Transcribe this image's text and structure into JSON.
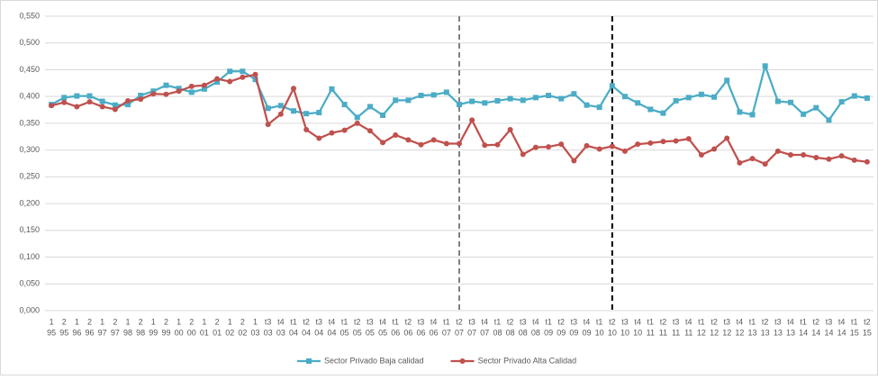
{
  "chart_data": {
    "type": "line",
    "categories": [
      [
        "1",
        "95"
      ],
      [
        "2",
        "95"
      ],
      [
        "1",
        "96"
      ],
      [
        "2",
        "96"
      ],
      [
        "1",
        "97"
      ],
      [
        "2",
        "97"
      ],
      [
        "1",
        "98"
      ],
      [
        "2",
        "98"
      ],
      [
        "1",
        "99"
      ],
      [
        "2",
        "99"
      ],
      [
        "1",
        "00"
      ],
      [
        "2",
        "00"
      ],
      [
        "1",
        "01"
      ],
      [
        "2",
        "01"
      ],
      [
        "1",
        "02"
      ],
      [
        "2",
        "02"
      ],
      [
        "1",
        "03"
      ],
      [
        "t3",
        "03"
      ],
      [
        "t4",
        "03"
      ],
      [
        "t1",
        "04"
      ],
      [
        "t2",
        "04"
      ],
      [
        "t3",
        "04"
      ],
      [
        "t4",
        "04"
      ],
      [
        "t1",
        "05"
      ],
      [
        "t2",
        "05"
      ],
      [
        "t3",
        "05"
      ],
      [
        "t4",
        "05"
      ],
      [
        "t1",
        "06"
      ],
      [
        "t2",
        "06"
      ],
      [
        "t3",
        "06"
      ],
      [
        "t4",
        "06"
      ],
      [
        "t1",
        "07"
      ],
      [
        "t2",
        "07"
      ],
      [
        "t3",
        "07"
      ],
      [
        "t4",
        "07"
      ],
      [
        "t1",
        "08"
      ],
      [
        "t2",
        "08"
      ],
      [
        "t3",
        "08"
      ],
      [
        "t4",
        "08"
      ],
      [
        "t1",
        "09"
      ],
      [
        "t2",
        "09"
      ],
      [
        "t3",
        "09"
      ],
      [
        "t4",
        "09"
      ],
      [
        "t1",
        "10"
      ],
      [
        "t2",
        "10"
      ],
      [
        "t3",
        "10"
      ],
      [
        "t4",
        "10"
      ],
      [
        "t1",
        "11"
      ],
      [
        "t2",
        "11"
      ],
      [
        "t3",
        "11"
      ],
      [
        "t4",
        "11"
      ],
      [
        "t1",
        "12"
      ],
      [
        "t2",
        "12"
      ],
      [
        "t3",
        "12"
      ],
      [
        "t4",
        "12"
      ],
      [
        "t1",
        "13"
      ],
      [
        "t2",
        "13"
      ],
      [
        "t3",
        "13"
      ],
      [
        "t4",
        "13"
      ],
      [
        "t1",
        "14"
      ],
      [
        "t2",
        "14"
      ],
      [
        "t3",
        "14"
      ],
      [
        "t4",
        "14"
      ],
      [
        "t1",
        "15"
      ],
      [
        "t2",
        "15"
      ]
    ],
    "series": [
      {
        "name": "Sector Privado Baja calidad",
        "color": "#4bacc6",
        "marker": "square",
        "values": [
          0.385,
          0.398,
          0.401,
          0.401,
          0.391,
          0.384,
          0.385,
          0.402,
          0.41,
          0.421,
          0.415,
          0.408,
          0.414,
          0.427,
          0.447,
          0.447,
          0.432,
          0.378,
          0.383,
          0.373,
          0.368,
          0.37,
          0.414,
          0.385,
          0.361,
          0.381,
          0.365,
          0.393,
          0.393,
          0.402,
          0.403,
          0.408,
          0.385,
          0.391,
          0.388,
          0.392,
          0.396,
          0.393,
          0.398,
          0.402,
          0.396,
          0.405,
          0.384,
          0.38,
          0.42,
          0.4,
          0.388,
          0.376,
          0.369,
          0.392,
          0.398,
          0.404,
          0.399,
          0.43,
          0.371,
          0.366,
          0.457,
          0.391,
          0.389,
          0.367,
          0.379,
          0.356,
          0.39,
          0.401,
          0.397
        ]
      },
      {
        "name": "Sector Privado Alta Calidad",
        "color": "#c0504d",
        "marker": "circle",
        "values": [
          0.383,
          0.389,
          0.381,
          0.39,
          0.381,
          0.376,
          0.392,
          0.395,
          0.405,
          0.404,
          0.41,
          0.419,
          0.421,
          0.433,
          0.428,
          0.436,
          0.441,
          0.348,
          0.367,
          0.415,
          0.338,
          0.322,
          0.332,
          0.337,
          0.35,
          0.336,
          0.314,
          0.328,
          0.319,
          0.31,
          0.319,
          0.312,
          0.312,
          0.356,
          0.309,
          0.31,
          0.338,
          0.292,
          0.305,
          0.306,
          0.311,
          0.28,
          0.308,
          0.302,
          0.307,
          0.298,
          0.311,
          0.313,
          0.316,
          0.317,
          0.321,
          0.291,
          0.302,
          0.322,
          0.276,
          0.284,
          0.274,
          0.298,
          0.291,
          0.291,
          0.286,
          0.283,
          0.289,
          0.281,
          0.278
        ]
      }
    ],
    "ylim": [
      0,
      0.55
    ],
    "yticks": [
      {
        "value": 0,
        "label": "0,000"
      },
      {
        "value": 0.05,
        "label": "0,050"
      },
      {
        "value": 0.1,
        "label": "0,100"
      },
      {
        "value": 0.15,
        "label": "0,150"
      },
      {
        "value": 0.2,
        "label": "0,200"
      },
      {
        "value": 0.25,
        "label": "0,250"
      },
      {
        "value": 0.3,
        "label": "0,300"
      },
      {
        "value": 0.35,
        "label": "0,350"
      },
      {
        "value": 0.4,
        "label": "0,400"
      },
      {
        "value": 0.45,
        "label": "0,450"
      },
      {
        "value": 0.5,
        "label": "0,500"
      },
      {
        "value": 0.55,
        "label": "0,550"
      }
    ],
    "grid": true,
    "legend": "bottom",
    "reference_lines": [
      {
        "x": 32,
        "color": "#808080"
      },
      {
        "x": 44,
        "color": "#000000"
      }
    ]
  }
}
